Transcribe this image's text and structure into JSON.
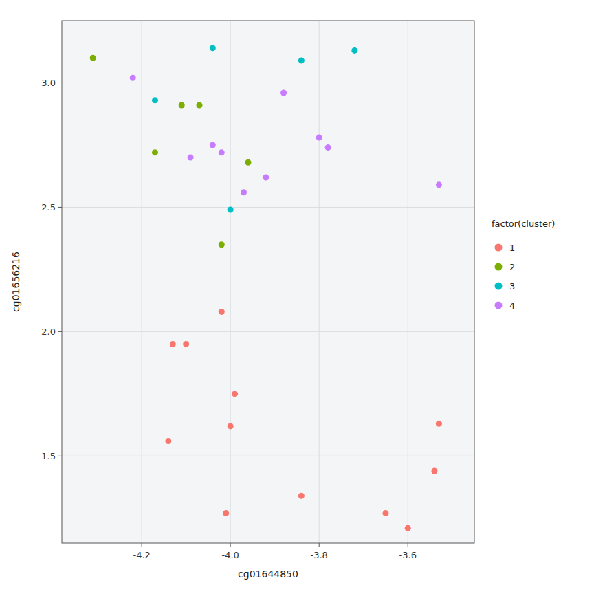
{
  "chart_data": {
    "type": "scatter",
    "xlabel": "cg01644850",
    "ylabel": "cg01656216",
    "legend_title": "factor(cluster)",
    "legend": "right",
    "grid": true,
    "xlim": [
      -4.38,
      -3.45
    ],
    "ylim": [
      1.15,
      3.25
    ],
    "xticks": [
      -4.2,
      {
        "value": -4.0,
        "label": "-4.0"
      },
      -3.8,
      -3.6
    ],
    "yticks": [
      1.5,
      {
        "value": 2.0,
        "label": "2.0"
      },
      2.5,
      {
        "value": 3.0,
        "label": "3.0"
      }
    ],
    "series": [
      {
        "name": "1",
        "color": "#F8766D",
        "x": [
          -4.13,
          -4.1,
          -4.02,
          -4.14,
          -4.0,
          -3.99,
          -4.01,
          -3.84,
          -3.65,
          -3.6,
          -3.54,
          -3.53
        ],
        "values": [
          1.95,
          1.95,
          2.08,
          1.56,
          1.62,
          1.75,
          1.27,
          1.34,
          1.27,
          1.21,
          1.44,
          1.63
        ]
      },
      {
        "name": "2",
        "color": "#7CAE00",
        "x": [
          -4.31,
          -4.17,
          -4.11,
          -4.07,
          -3.96,
          -4.02
        ],
        "values": [
          3.1,
          2.72,
          2.91,
          2.91,
          2.68,
          2.35
        ]
      },
      {
        "name": "3",
        "color": "#00BFC4",
        "x": [
          -4.04,
          -3.84,
          -3.72,
          -4.17,
          -4.0
        ],
        "values": [
          3.14,
          3.09,
          3.13,
          2.93,
          2.49
        ]
      },
      {
        "name": "4",
        "color": "#C77CFF",
        "x": [
          -4.22,
          -4.09,
          -4.04,
          -4.02,
          -3.97,
          -3.92,
          -3.88,
          -3.8,
          -3.78,
          -3.53
        ],
        "values": [
          3.02,
          2.7,
          2.75,
          2.72,
          2.56,
          2.62,
          2.96,
          2.78,
          2.74,
          2.59
        ]
      }
    ]
  }
}
